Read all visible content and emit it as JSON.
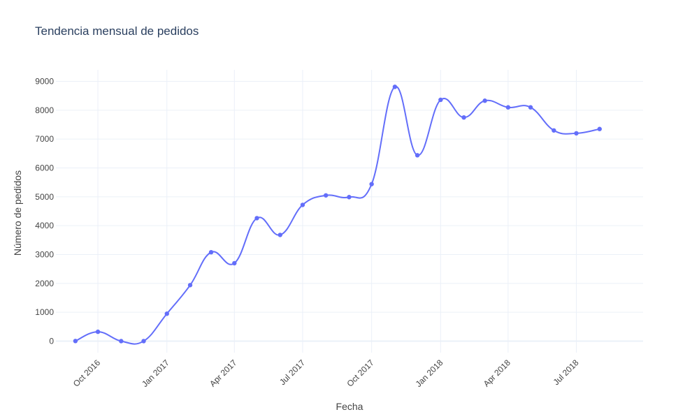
{
  "chart_data": {
    "type": "line",
    "title": "Tendencia mensual de pedidos",
    "xlabel": "Fecha",
    "ylabel": "Número de pedidos",
    "ylim": [
      -400,
      9400
    ],
    "xlim": [
      "2016-08-06",
      "2018-09-28"
    ],
    "yticks": [
      0,
      1000,
      2000,
      3000,
      4000,
      5000,
      6000,
      7000,
      8000,
      9000
    ],
    "xticks": [
      {
        "date": "2016-10-01",
        "label": "Oct 2016"
      },
      {
        "date": "2017-01-01",
        "label": "Jan 2017"
      },
      {
        "date": "2017-04-01",
        "label": "Apr 2017"
      },
      {
        "date": "2017-07-01",
        "label": "Jul 2017"
      },
      {
        "date": "2017-10-01",
        "label": "Oct 2017"
      },
      {
        "date": "2018-01-01",
        "label": "Jan 2018"
      },
      {
        "date": "2018-04-01",
        "label": "Apr 2018"
      },
      {
        "date": "2018-07-01",
        "label": "Jul 2018"
      }
    ],
    "grid": true,
    "line_shape": "spline",
    "line_color": "#636efa",
    "series": [
      {
        "x": [
          "2016-09-01",
          "2016-10-01",
          "2016-11-01",
          "2016-12-01",
          "2017-01-01",
          "2017-02-01",
          "2017-03-01",
          "2017-04-01",
          "2017-05-01",
          "2017-06-01",
          "2017-07-01",
          "2017-08-01",
          "2017-09-01",
          "2017-10-01",
          "2017-11-01",
          "2017-12-01",
          "2018-01-01",
          "2018-02-01",
          "2018-03-01",
          "2018-04-01",
          "2018-05-01",
          "2018-06-01",
          "2018-07-01",
          "2018-08-01"
        ],
        "y": [
          4,
          324,
          0,
          1,
          950,
          1940,
          3080,
          2700,
          4260,
          3680,
          4720,
          5050,
          4990,
          5440,
          8810,
          6440,
          8360,
          7750,
          8330,
          8100,
          8100,
          7300,
          7200,
          7350
        ]
      }
    ]
  }
}
